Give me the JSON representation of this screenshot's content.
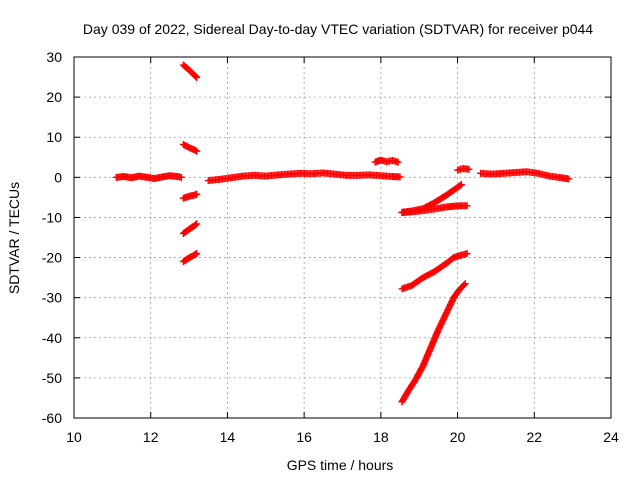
{
  "chart_data": {
    "type": "scatter",
    "title": "Day 039 of 2022, Sidereal Day-to-day VTEC variation (SDTVAR) for receiver p044",
    "xlabel": "GPS time / hours",
    "ylabel": "SDTVAR / TECUs",
    "xlim": [
      10,
      24
    ],
    "ylim": [
      -60,
      30
    ],
    "xticks": [
      10,
      12,
      14,
      16,
      18,
      20,
      22,
      24
    ],
    "yticks": [
      -60,
      -50,
      -40,
      -30,
      -20,
      -10,
      0,
      10,
      20,
      30
    ],
    "grid": true,
    "legend": "none",
    "marker": "plus",
    "color": "#ff0000",
    "series": [
      {
        "x": [
          11.1,
          11.3,
          11.5,
          11.7,
          11.9,
          12.1,
          12.3,
          12.5,
          12.7,
          12.8
        ],
        "y": [
          0.0,
          0.2,
          -0.1,
          0.3,
          0.0,
          -0.3,
          0.1,
          0.4,
          0.2,
          0.0
        ]
      },
      {
        "x": [
          12.85,
          12.95,
          13.05,
          13.15,
          13.2
        ],
        "y": [
          28.0,
          27.2,
          26.3,
          25.4,
          24.9
        ]
      },
      {
        "x": [
          12.85,
          12.95,
          13.05,
          13.15,
          13.2
        ],
        "y": [
          8.2,
          7.7,
          7.2,
          6.8,
          6.5
        ]
      },
      {
        "x": [
          12.85,
          12.95,
          13.05,
          13.15,
          13.2
        ],
        "y": [
          -5.2,
          -4.9,
          -4.6,
          -4.4,
          -4.2
        ]
      },
      {
        "x": [
          12.85,
          12.95,
          13.05,
          13.15,
          13.2
        ],
        "y": [
          -14.0,
          -13.3,
          -12.6,
          -12.0,
          -11.6
        ]
      },
      {
        "x": [
          12.85,
          12.95,
          13.05,
          13.15,
          13.2
        ],
        "y": [
          -21.0,
          -20.4,
          -19.8,
          -19.3,
          -19.0
        ]
      },
      {
        "x": [
          13.5,
          13.8,
          14.1,
          14.4,
          14.7,
          15.0,
          15.3,
          15.6,
          15.9,
          16.2,
          16.5,
          16.8,
          17.1,
          17.4,
          17.7,
          18.0,
          18.3,
          18.5
        ],
        "y": [
          -0.8,
          -0.5,
          -0.1,
          0.3,
          0.5,
          0.3,
          0.6,
          0.8,
          1.0,
          0.9,
          1.1,
          0.8,
          0.5,
          0.5,
          0.6,
          0.4,
          0.2,
          0.1
        ]
      },
      {
        "x": [
          17.85,
          18.0,
          18.15,
          18.3,
          18.45
        ],
        "y": [
          3.8,
          4.3,
          3.9,
          4.2,
          3.8
        ]
      },
      {
        "x": [
          18.55,
          18.8,
          19.1,
          19.4,
          19.7,
          19.9,
          20.1
        ],
        "y": [
          -8.7,
          -8.4,
          -7.8,
          -6.3,
          -4.5,
          -3.2,
          -1.8
        ]
      },
      {
        "x": [
          18.55,
          18.8,
          19.1,
          19.4,
          19.7,
          19.9,
          20.1,
          20.25
        ],
        "y": [
          -8.8,
          -8.6,
          -8.3,
          -7.9,
          -7.4,
          -7.2,
          -7.1,
          -7.1
        ]
      },
      {
        "x": [
          18.55,
          18.8,
          19.1,
          19.4,
          19.7,
          19.9,
          20.1,
          20.25
        ],
        "y": [
          -27.8,
          -27.0,
          -25.0,
          -23.5,
          -21.5,
          -20.0,
          -19.4,
          -19.0
        ]
      },
      {
        "x": [
          18.55,
          18.7,
          18.9,
          19.1,
          19.3,
          19.5,
          19.7,
          19.9,
          20.05,
          20.2
        ],
        "y": [
          -56.0,
          -53.5,
          -50.5,
          -47.0,
          -42.5,
          -38.0,
          -34.0,
          -30.0,
          -28.0,
          -26.5
        ]
      },
      {
        "x": [
          20.0,
          20.15,
          20.3
        ],
        "y": [
          1.8,
          2.2,
          2.0
        ]
      },
      {
        "x": [
          20.6,
          20.9,
          21.2,
          21.5,
          21.8,
          22.1,
          22.4,
          22.7,
          22.9
        ],
        "y": [
          1.0,
          0.8,
          1.0,
          1.2,
          1.4,
          1.0,
          0.3,
          -0.1,
          -0.4
        ]
      }
    ]
  }
}
